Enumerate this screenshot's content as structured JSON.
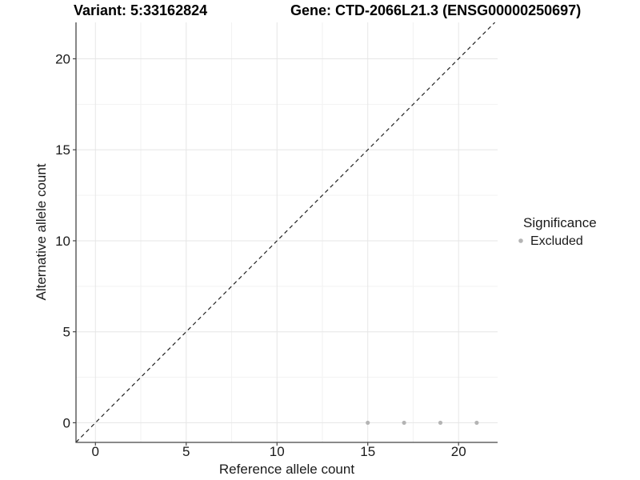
{
  "chart_data": {
    "type": "scatter",
    "title_left": "Variant: 5:33162824",
    "title_right": "Gene: CTD-2066L21.3 (ENSG00000250697)",
    "xlabel": "Reference allele count",
    "ylabel": "Alternative allele count",
    "xlim": [
      -1.07,
      22.15
    ],
    "ylim": [
      -1.08,
      22.0
    ],
    "x_ticks": [
      0,
      5,
      10,
      15,
      20
    ],
    "y_ticks": [
      0,
      5,
      10,
      15,
      20
    ],
    "x_minor_gridlines": [
      2.5,
      7.5,
      12.5,
      17.5
    ],
    "y_minor_gridlines": [
      2.5,
      7.5,
      12.5,
      17.5
    ],
    "grid": true,
    "series": [
      {
        "name": "Excluded",
        "color": "#b4b4b4",
        "points": [
          {
            "x": 15,
            "y": 0
          },
          {
            "x": 17,
            "y": 0
          },
          {
            "x": 19,
            "y": 0
          },
          {
            "x": 21,
            "y": 0
          }
        ]
      }
    ],
    "reference_line": {
      "type": "identity y=x",
      "style": "dashed",
      "color": "#222222"
    },
    "legend": {
      "title": "Significance",
      "position": "right",
      "items": [
        {
          "label": "Excluded",
          "color": "#b4b4b4"
        }
      ]
    },
    "colors": {
      "point": "#b4b4b4",
      "grid_major": "#e6e6e6",
      "grid_minor": "#f2f2f2",
      "axis_line": "#454545",
      "background": "#ffffff"
    }
  }
}
